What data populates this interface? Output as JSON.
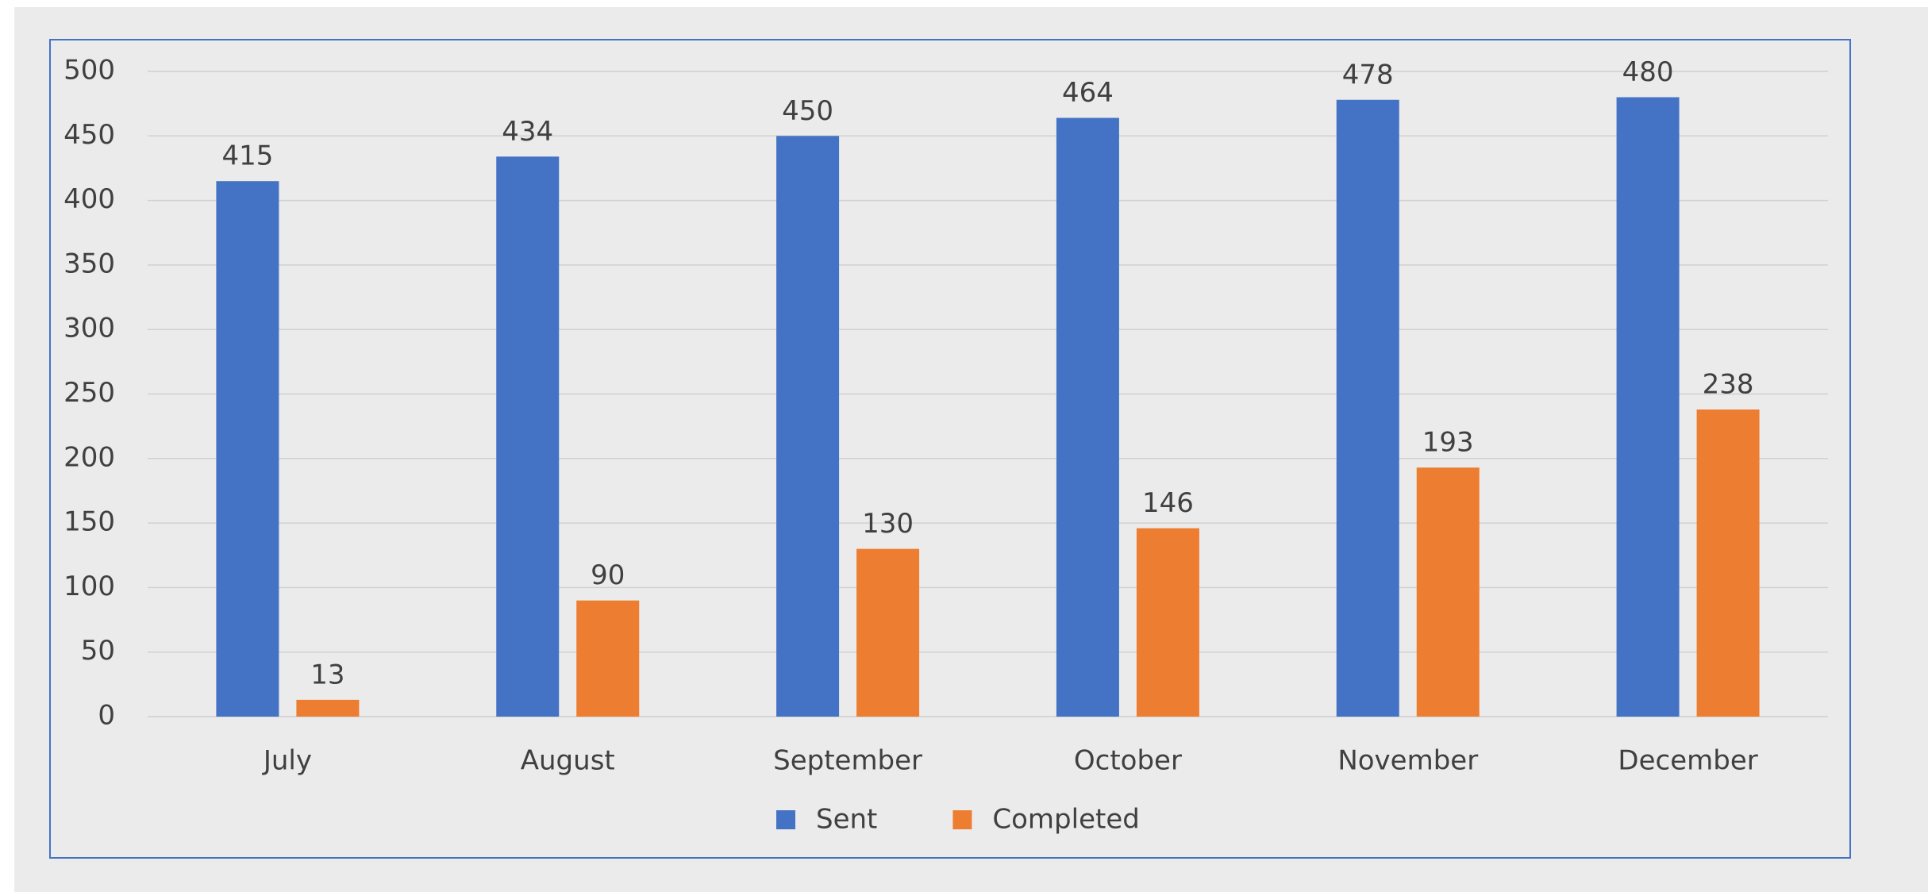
{
  "chart_data": {
    "type": "bar",
    "categories": [
      "July",
      "August",
      "September",
      "October",
      "November",
      "December"
    ],
    "series": [
      {
        "name": "Sent",
        "color": "#4472c4",
        "values": [
          415,
          434,
          450,
          464,
          478,
          480
        ]
      },
      {
        "name": "Completed",
        "color": "#ed7d31",
        "values": [
          13,
          90,
          130,
          146,
          193,
          238
        ]
      }
    ],
    "ylim": [
      0,
      500
    ],
    "yticks": [
      0,
      50,
      100,
      150,
      200,
      250,
      300,
      350,
      400,
      450,
      500
    ],
    "grid": true,
    "legend": "bottom"
  }
}
